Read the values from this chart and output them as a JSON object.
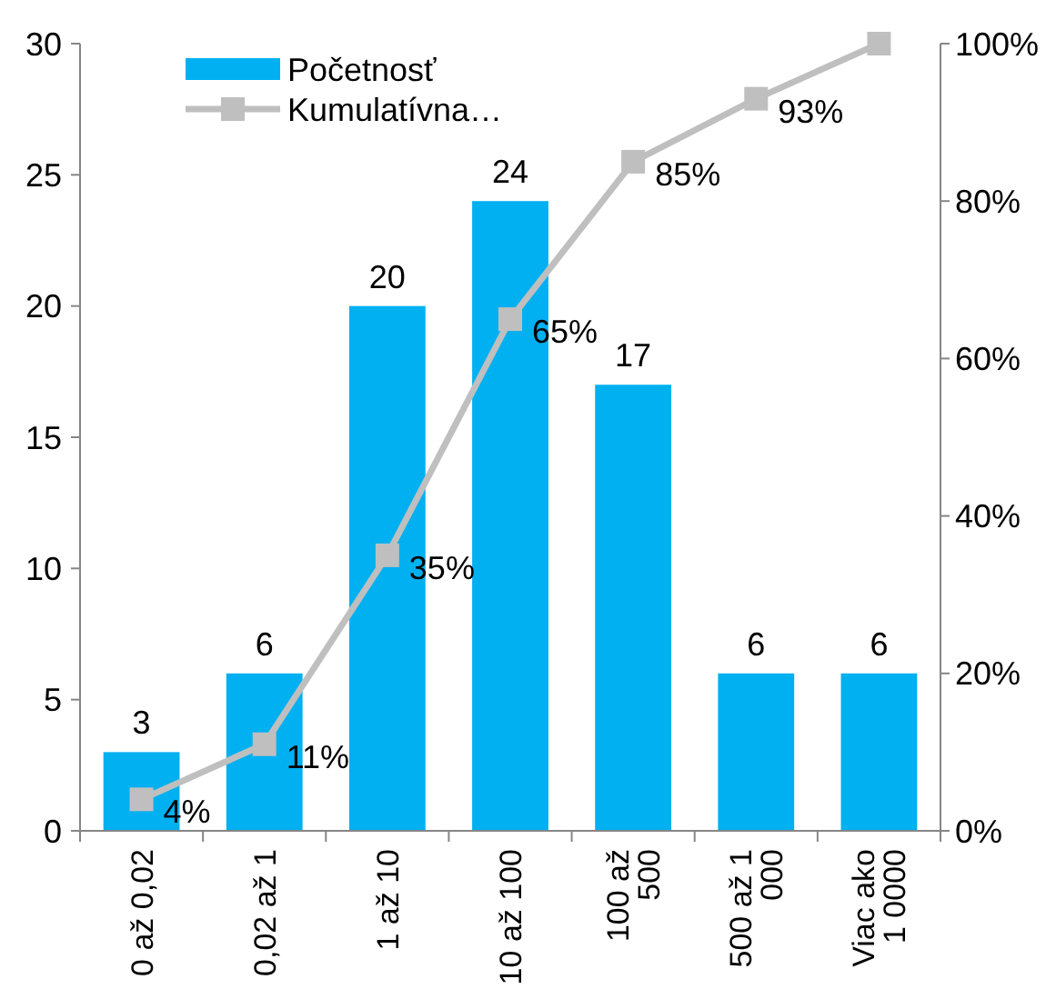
{
  "chart_data": {
    "type": "bar",
    "categories": [
      "0 až 0,02",
      "0,02 až 1",
      "1 až 10",
      "10 až 100",
      "100 až 500",
      "500 až 1 000",
      "Viac ako 1 0000"
    ],
    "series": [
      {
        "name": "Početnosť",
        "color": "#00b0f0",
        "values": [
          3,
          6,
          20,
          24,
          17,
          6,
          6
        ],
        "value_labels": [
          "3",
          "6",
          "20",
          "24",
          "17",
          "6",
          "6"
        ]
      },
      {
        "name": "Kumulatívna…",
        "type": "line",
        "axis": "y2",
        "color": "#bfbfbf",
        "marker": "square",
        "values": [
          4,
          11,
          35,
          65,
          85,
          93,
          100
        ],
        "value_labels": [
          "4%",
          "11%",
          "35%",
          "65%",
          "85%",
          "93%",
          null
        ]
      }
    ],
    "ylim": [
      0,
      30
    ],
    "yticks": [
      0,
      5,
      10,
      15,
      20,
      25,
      30
    ],
    "y2lim": [
      0,
      100
    ],
    "y2ticks": [
      {
        "value": 0,
        "label": "0%"
      },
      {
        "value": 20,
        "label": "20%"
      },
      {
        "value": 40,
        "label": "40%"
      },
      {
        "value": 60,
        "label": "60%"
      },
      {
        "value": 80,
        "label": "80%"
      },
      {
        "value": 100,
        "label": "100%"
      }
    ],
    "legend": "top left",
    "grid": false
  }
}
